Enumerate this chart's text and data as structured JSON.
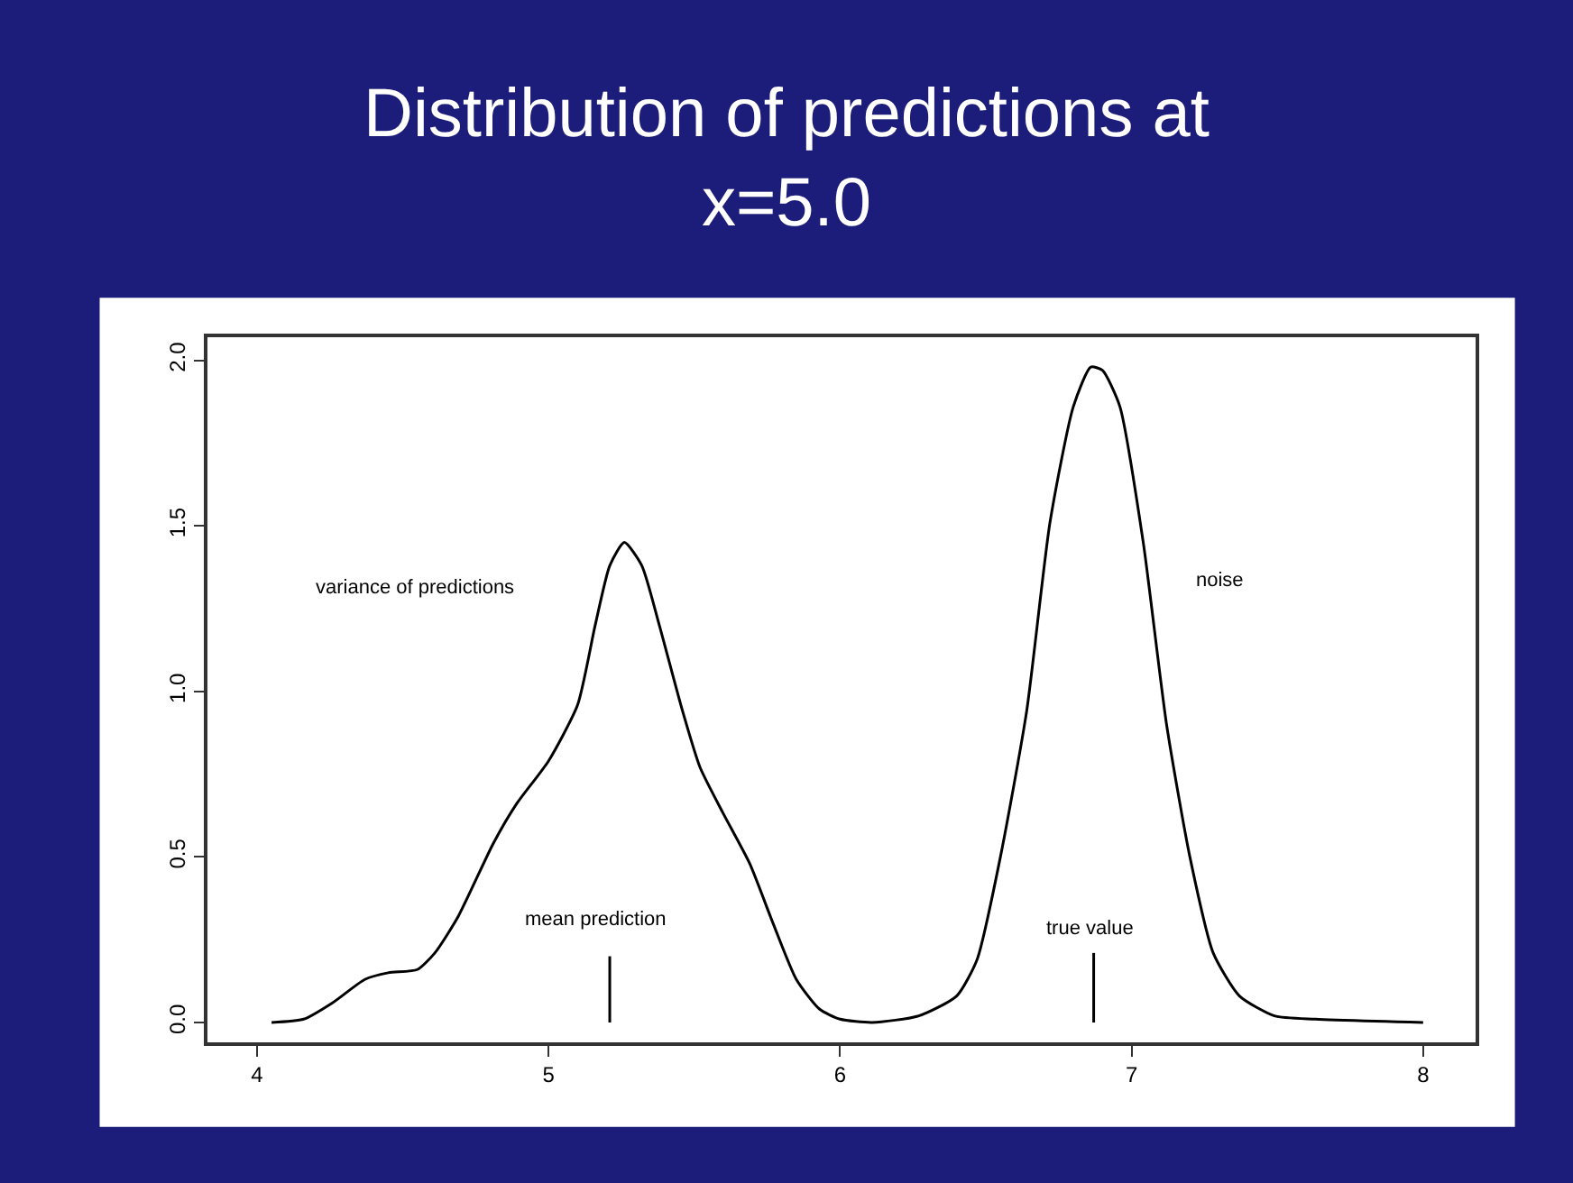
{
  "chart_data": {
    "type": "line",
    "title": "Distribution of predictions at\nx=5.0",
    "xlim": [
      3.83,
      8.18
    ],
    "ylim": [
      -0.06,
      2.07
    ],
    "xticks": [
      4,
      5,
      6,
      7,
      8
    ],
    "yticks": [
      {
        "value": 0,
        "label": "0.0"
      },
      0.5,
      {
        "value": 1,
        "label": "1.0"
      },
      1.5,
      {
        "value": 2,
        "label": "2.0"
      }
    ],
    "marker": "none",
    "line_style": "solid",
    "series": [
      {
        "color": "#000000",
        "x": [
          4.05,
          4.16,
          4.26,
          4.37,
          4.45,
          4.55,
          4.61,
          4.69,
          4.81,
          4.89,
          5.0,
          5.1,
          5.16,
          5.21,
          5.26,
          5.32,
          5.38,
          5.46,
          5.52,
          5.6,
          5.69,
          5.77,
          5.85,
          5.93,
          6.0,
          6.11,
          6.27,
          6.4,
          6.47,
          6.55,
          6.64,
          6.72,
          6.8,
          6.86,
          6.9,
          6.96,
          7.04,
          7.12,
          7.2,
          7.28,
          7.37,
          7.49,
          7.63,
          8.0
        ],
        "values": [
          0.0,
          0.01,
          0.06,
          0.13,
          0.15,
          0.16,
          0.21,
          0.32,
          0.54,
          0.66,
          0.79,
          0.96,
          1.2,
          1.38,
          1.45,
          1.38,
          1.2,
          0.94,
          0.77,
          0.63,
          0.48,
          0.3,
          0.13,
          0.04,
          0.01,
          0.0,
          0.02,
          0.08,
          0.19,
          0.5,
          0.94,
          1.51,
          1.86,
          1.98,
          1.97,
          1.86,
          1.45,
          0.9,
          0.5,
          0.21,
          0.08,
          0.02,
          0.01,
          0.0
        ]
      },
      {
        "color": "#000000",
        "x": [
          5.21,
          5.21
        ],
        "values": [
          0.0,
          0.2
        ]
      },
      {
        "color": "#000000",
        "x": [
          6.87,
          6.87
        ],
        "values": [
          0.0,
          0.21
        ]
      }
    ],
    "annotations": [
      "variance of predictions",
      "mean prediction",
      "true value",
      "noise"
    ]
  }
}
